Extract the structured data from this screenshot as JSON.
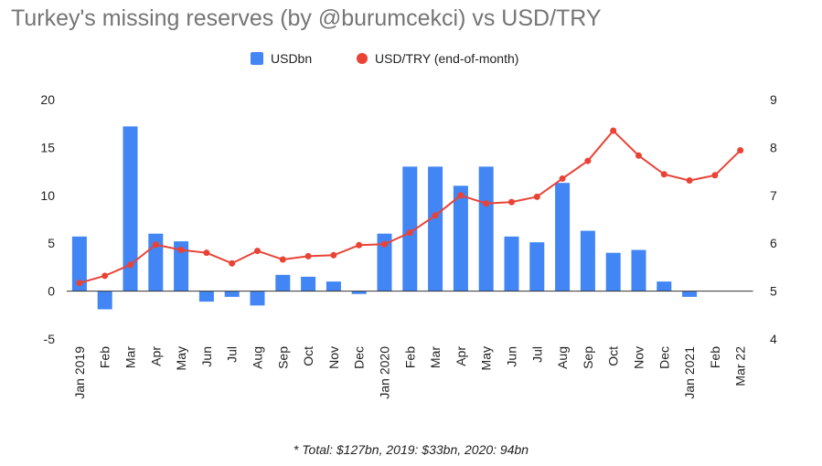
{
  "chart_data": {
    "type": "bar",
    "title": "Turkey's missing reserves (by @burumcekci) vs USD/TRY",
    "categories": [
      "Jan 2019",
      "Feb",
      "Mar",
      "Apr",
      "May",
      "Jun",
      "Jul",
      "Aug",
      "Sep",
      "Oct",
      "Nov",
      "Dec",
      "Jan 2020",
      "Feb",
      "Mar",
      "Apr",
      "May",
      "Jun",
      "Jul",
      "Aug",
      "Sep",
      "Oct",
      "Nov",
      "Dec",
      "Jan 2021",
      "Feb",
      "Mar 22"
    ],
    "series": [
      {
        "name": "USDbn",
        "type": "bar",
        "axis": "left",
        "color": "#4285f4",
        "values": [
          5.7,
          -1.9,
          17.2,
          6.0,
          5.2,
          -1.1,
          -0.6,
          -1.5,
          1.7,
          1.5,
          1.0,
          -0.3,
          6.0,
          13.0,
          13.0,
          11.0,
          13.0,
          5.7,
          5.1,
          11.3,
          6.3,
          4.0,
          4.3,
          1.0,
          -0.6,
          null,
          null
        ]
      },
      {
        "name": "USD/TRY (end-of-month)",
        "type": "line",
        "axis": "right",
        "color": "#ea4335",
        "values": [
          5.17,
          5.32,
          5.55,
          5.97,
          5.86,
          5.8,
          5.58,
          5.84,
          5.66,
          5.73,
          5.75,
          5.96,
          5.98,
          6.22,
          6.58,
          7.0,
          6.83,
          6.86,
          6.97,
          7.35,
          7.72,
          8.35,
          7.83,
          7.44,
          7.31,
          7.42,
          7.94
        ]
      }
    ],
    "y_left": {
      "min": -5,
      "max": 20,
      "ticks": [
        -5,
        0,
        5,
        10,
        15,
        20
      ]
    },
    "y_right": {
      "min": 4,
      "max": 9,
      "ticks": [
        4,
        5,
        6,
        7,
        8,
        9
      ]
    },
    "legend_position": "top",
    "grid": false
  },
  "legend": {
    "bar_label": "USDbn",
    "line_label": "USD/TRY (end-of-month)"
  },
  "footnote": "* Total: $127bn, 2019: $33bn, 2020: 94bn"
}
